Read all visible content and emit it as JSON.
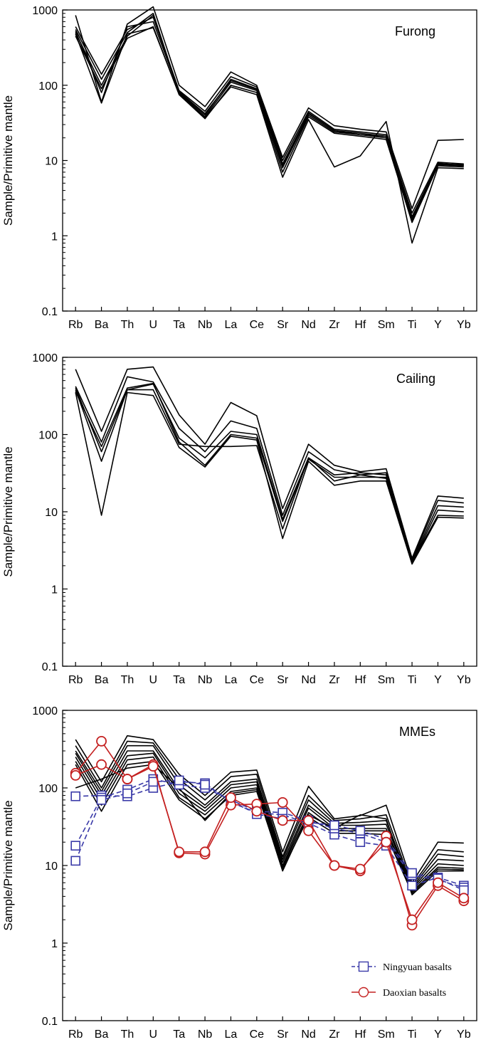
{
  "chart_data": [
    {
      "type": "line",
      "title": "Furong",
      "ylabel": "Sample/Primitive mantle",
      "yscale": "log",
      "ylim": [
        0.1,
        1000
      ],
      "yticks": [
        "0.1",
        "1",
        "10",
        "100",
        "1000"
      ],
      "categories": [
        "Rb",
        "Ba",
        "Th",
        "U",
        "Ta",
        "Nb",
        "La",
        "Ce",
        "Sr",
        "Nd",
        "Zr",
        "Hf",
        "Sm",
        "Ti",
        "Y",
        "Yb"
      ],
      "line_color": "#000000",
      "series": [
        {
          "values": [
            850,
            60,
            650,
            1100,
            100,
            52,
            150,
            100,
            11,
            50,
            29,
            26,
            24,
            2.3,
            18.5,
            19
          ]
        },
        {
          "values": [
            600,
            140,
            550,
            800,
            85,
            45,
            130,
            95,
            10,
            45,
            26,
            24,
            22,
            2.0,
            9.5,
            9
          ]
        },
        {
          "values": [
            550,
            120,
            500,
            900,
            80,
            40,
            120,
            90,
            9,
            42,
            25,
            23,
            21,
            1.8,
            9,
            8.8
          ]
        },
        {
          "values": [
            500,
            100,
            450,
            850,
            78,
            38,
            110,
            85,
            8,
            40,
            24,
            22,
            20,
            1.6,
            8.8,
            8.5
          ]
        },
        {
          "values": [
            450,
            90,
            420,
            600,
            75,
            36,
            100,
            80,
            7,
            38,
            23,
            21,
            19,
            1.5,
            8.5,
            8.2
          ]
        },
        {
          "values": [
            520,
            80,
            600,
            700,
            82,
            42,
            115,
            88,
            8.5,
            43,
            25,
            22,
            21,
            1.7,
            9.2,
            8.6
          ]
        },
        {
          "values": [
            480,
            58,
            480,
            580,
            76,
            37,
            95,
            75,
            6,
            35,
            8.2,
            11.5,
            33,
            0.8,
            8,
            7.8
          ]
        }
      ]
    },
    {
      "type": "line",
      "title": "Cailing",
      "ylabel": "Sample/Primitive mantle",
      "yscale": "log",
      "ylim": [
        0.1,
        1000
      ],
      "yticks": [
        "0.1",
        "1",
        "10",
        "100",
        "1000"
      ],
      "categories": [
        "Rb",
        "Ba",
        "Th",
        "U",
        "Ta",
        "Nb",
        "La",
        "Ce",
        "Sr",
        "Nd",
        "Zr",
        "Hf",
        "Sm",
        "Ti",
        "Y",
        "Yb"
      ],
      "line_color": "#000000",
      "series": [
        {
          "values": [
            700,
            110,
            700,
            750,
            180,
            75,
            260,
            175,
            11,
            75,
            40,
            33,
            36,
            2.5,
            16,
            15
          ]
        },
        {
          "values": [
            420,
            80,
            560,
            480,
            120,
            60,
            150,
            120,
            9,
            60,
            35,
            30,
            32,
            2.4,
            14,
            13
          ]
        },
        {
          "values": [
            380,
            45,
            380,
            450,
            90,
            50,
            110,
            100,
            8,
            50,
            30,
            32,
            30,
            2.3,
            12,
            11.5
          ]
        },
        {
          "values": [
            360,
            70,
            400,
            460,
            80,
            40,
            100,
            90,
            7.5,
            48,
            28,
            28,
            28,
            2.2,
            10.5,
            10
          ]
        },
        {
          "values": [
            350,
            9,
            350,
            320,
            68,
            38,
            95,
            85,
            4.5,
            45,
            22,
            25,
            25,
            2.1,
            8.5,
            8.3
          ]
        },
        {
          "values": [
            400,
            60,
            380,
            380,
            75,
            70,
            70,
            72,
            6,
            50,
            25,
            30,
            27,
            2.2,
            9,
            8.8
          ]
        }
      ]
    },
    {
      "type": "line",
      "title": "MMEs",
      "ylabel": "Sample/Primitive mantle",
      "yscale": "log",
      "ylim": [
        0.1,
        1000
      ],
      "yticks": [
        "0.1",
        "1",
        "10",
        "100",
        "1000"
      ],
      "categories": [
        "Rb",
        "Ba",
        "Th",
        "U",
        "Ta",
        "Nb",
        "La",
        "Ce",
        "Sr",
        "Nd",
        "Zr",
        "Hf",
        "Sm",
        "Ti",
        "Y",
        "Yb"
      ],
      "line_color": "#000000",
      "series": [
        {
          "values": [
            420,
            120,
            470,
            420,
            150,
            80,
            160,
            170,
            15,
            105,
            40,
            44,
            60,
            6,
            20,
            19.5
          ]
        },
        {
          "values": [
            350,
            100,
            400,
            380,
            130,
            70,
            140,
            150,
            13,
            80,
            38,
            40,
            45,
            5.5,
            16,
            15
          ]
        },
        {
          "values": [
            300,
            90,
            350,
            350,
            110,
            60,
            120,
            130,
            12,
            70,
            35,
            36,
            38,
            5.2,
            14,
            13
          ]
        },
        {
          "values": [
            280,
            80,
            300,
            300,
            95,
            55,
            110,
            120,
            11,
            60,
            33,
            33,
            34,
            5,
            12,
            11.5
          ]
        },
        {
          "values": [
            250,
            70,
            260,
            280,
            85,
            50,
            100,
            110,
            10,
            55,
            30,
            30,
            30,
            4.8,
            10.5,
            10
          ]
        },
        {
          "values": [
            220,
            60,
            230,
            250,
            75,
            45,
            90,
            100,
            9.5,
            48,
            28,
            28,
            28,
            4.6,
            9.5,
            9.2
          ]
        },
        {
          "values": [
            200,
            50,
            200,
            220,
            70,
            40,
            80,
            90,
            9,
            42,
            26,
            26,
            25,
            4.4,
            9,
            8.8
          ]
        },
        {
          "values": [
            100,
            130,
            180,
            200,
            100,
            38,
            85,
            95,
            8.5,
            45,
            30,
            45,
            40,
            4.2,
            8.5,
            8.5
          ]
        }
      ],
      "legend_position": "bottom-right",
      "marker_series": [
        {
          "name": "Ningyuan basalts",
          "color": "#3a3aa8",
          "marker": "square",
          "line_style": "dashed",
          "lines": [
            {
              "values": [
                78,
                80,
                78,
                100,
                120,
                115,
                65,
                48,
                45,
                35,
                25,
                20,
                18,
                5.5,
                7,
                5.5
              ]
            },
            {
              "values": [
                18,
                75,
                95,
                130,
                110,
                100,
                70,
                50,
                48,
                38,
                30,
                26,
                20,
                7.5,
                6.5,
                5.2
              ]
            },
            {
              "values": [
                11.5,
                70,
                85,
                120,
                125,
                110,
                68,
                46,
                40,
                36,
                33,
                28,
                22,
                8,
                6.8,
                4.8
              ]
            }
          ]
        },
        {
          "name": "Daoxian basalts",
          "color": "#c42020",
          "marker": "circle",
          "line_style": "solid",
          "lines": [
            {
              "values": [
                155,
                400,
                130,
                200,
                14.5,
                14,
                60,
                62,
                65,
                28,
                10,
                8.5,
                24,
                1.7,
                5.5,
                3.5
              ]
            },
            {
              "values": [
                145,
                200,
                130,
                190,
                15,
                15,
                75,
                50,
                38,
                38,
                10,
                9,
                20,
                2,
                6,
                3.8
              ]
            }
          ]
        }
      ]
    }
  ]
}
